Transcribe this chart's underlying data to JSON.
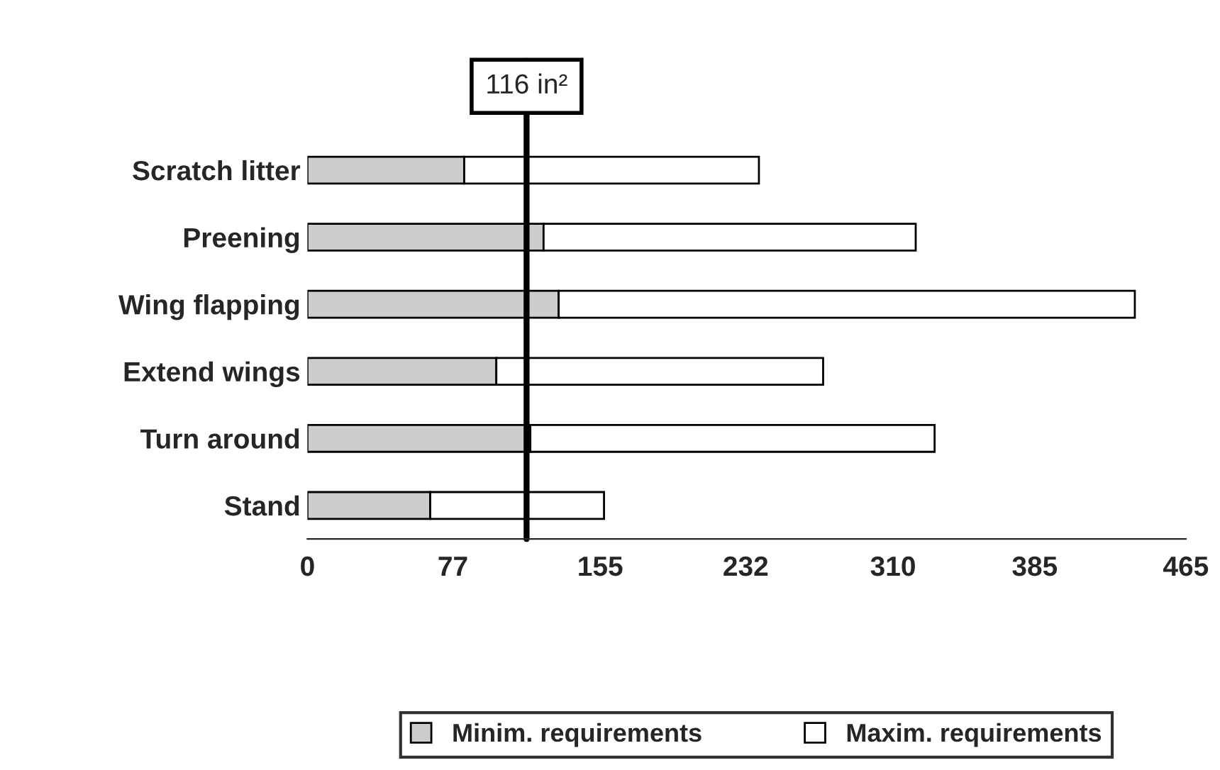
{
  "chart_data": {
    "type": "bar",
    "orientation": "horizontal",
    "stacked": true,
    "categories": [
      "Scratch litter",
      "Preening",
      "Wing flapping",
      "Extend wings",
      "Turn around",
      "Stand"
    ],
    "series": [
      {
        "name": "Minim. requirements",
        "color": "#cccccc",
        "values": [
          83,
          125,
          133,
          100,
          118,
          65
        ]
      },
      {
        "name": "Maxim. requirements",
        "color": "#ffffff",
        "values": [
          156,
          197,
          305,
          173,
          214,
          92
        ]
      }
    ],
    "xlim": [
      0,
      465
    ],
    "xticks": [
      0,
      77,
      155,
      232,
      310,
      385,
      465
    ],
    "ref_lines": [
      {
        "axis": "x",
        "value": 116,
        "label": "116 in²",
        "color": "#000000"
      }
    ],
    "grid": false,
    "legend": "bottom"
  }
}
